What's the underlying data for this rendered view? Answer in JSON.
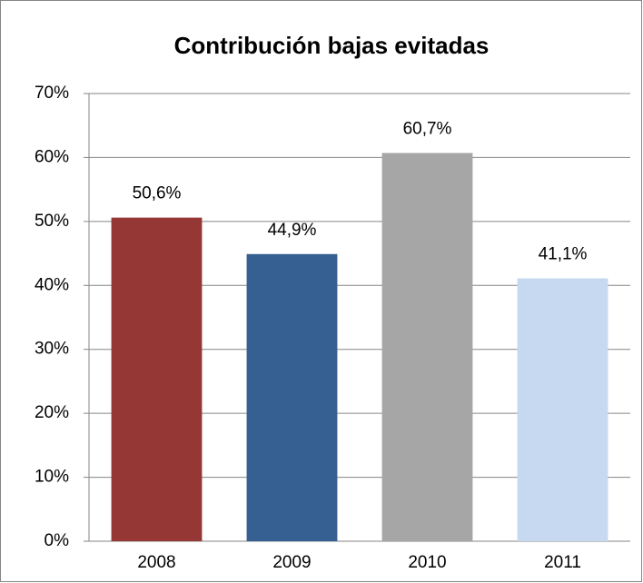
{
  "chart_data": {
    "type": "bar",
    "title": "Contribución bajas evitadas",
    "categories": [
      "2008",
      "2009",
      "2010",
      "2011"
    ],
    "values": [
      50.6,
      44.9,
      60.7,
      41.1
    ],
    "value_labels": [
      "50,6%",
      "44,9%",
      "60,7%",
      "41,1%"
    ],
    "colors": [
      "#953735",
      "#376092",
      "#a6a6a6",
      "#c6d9f1"
    ],
    "ylim": [
      0,
      70
    ],
    "yticks": [
      {
        "value": 0,
        "label": "0%"
      },
      {
        "value": 10,
        "label": "10%"
      },
      {
        "value": 20,
        "label": "20%"
      },
      {
        "value": 30,
        "label": "30%"
      },
      {
        "value": 40,
        "label": "40%"
      },
      {
        "value": 50,
        "label": "50%"
      },
      {
        "value": 60,
        "label": "60%"
      },
      {
        "value": 70,
        "label": "70%"
      }
    ],
    "grid": true
  }
}
